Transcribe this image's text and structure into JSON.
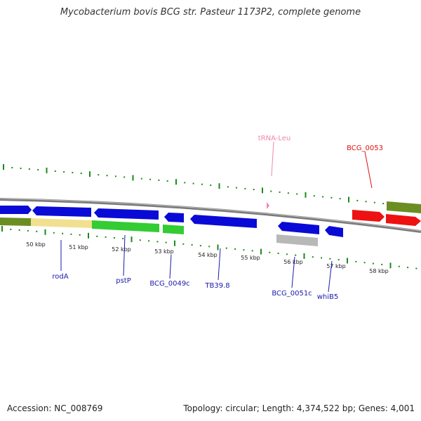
{
  "title": "Mycobacterium bovis BCG str. Pasteur 1173P2, complete genome",
  "footer": {
    "accession": "Accession: NC_008769",
    "topology": "Topology: circular; Length: 4,374,522 bp; Genes: 4,001"
  },
  "kbp_labels": [
    "50 kbp",
    "51 kbp",
    "52 kbp",
    "53 kbp",
    "54 kbp",
    "55 kbp",
    "56 kbp",
    "57 kbp",
    "58 kbp"
  ],
  "gene_labels": {
    "rodA": "rodA",
    "pstP": "pstP",
    "bcg0049c": "BCG_0049c",
    "tb398": "TB39.8",
    "bcg0051c": "BCG_0051c",
    "whiB5": "whiB5",
    "trnaLeu": "tRNA-Leu",
    "bcg0053": "BCG_0053"
  },
  "colors": {
    "backbone": "#7a7a7a",
    "tick": "#1a8a1a",
    "forward_gene": "#0a0ad6",
    "cds_olive": "#6b8e23",
    "cds_pale": "#f0e090",
    "cds_green": "#33cc33",
    "cds_gray": "#b8b8b8",
    "red_gene": "#ee1111",
    "label_blue": "#1a1aaa",
    "label_pink": "#ee88aa",
    "label_red": "#dd1111"
  }
}
